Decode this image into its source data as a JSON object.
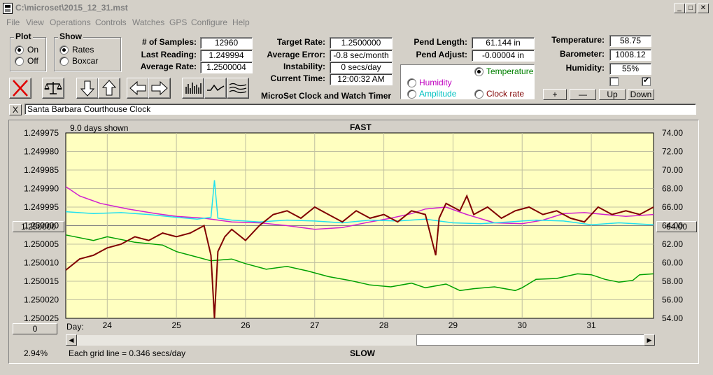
{
  "window": {
    "title": "C:\\microset\\2015_12_31.mst",
    "min_label": "_",
    "max_label": "□",
    "close_label": "✕"
  },
  "menu": [
    "File",
    "View",
    "Operations",
    "Controls",
    "Watches",
    "GPS",
    "Configure",
    "Help"
  ],
  "plot": {
    "title": "Plot",
    "options": [
      "On",
      "Off"
    ],
    "selected": "On"
  },
  "show": {
    "title": "Show",
    "options": [
      "Rates",
      "Boxcar"
    ],
    "selected": "Rates"
  },
  "stats": {
    "samples_label": "# of Samples:",
    "samples": "12960",
    "last_label": "Last Reading:",
    "last": "1.249994",
    "avg_label": "Average Rate:",
    "avg": "1.2500004"
  },
  "targets": {
    "target_label": "Target Rate:",
    "target": "1.2500000",
    "avgerr_label": "Average Error:",
    "avgerr": "-0.8 sec/month",
    "instab_label": "Instability:",
    "instab": "0 secs/day",
    "time_label": "Current Time:",
    "time": "12:00:32 AM"
  },
  "app_caption": "MicroSet Clock and Watch Timer",
  "pendulum": {
    "length_label": "Pend Length:",
    "length": "61.144 in",
    "adjust_label": "Pend Adjust:",
    "adjust": "-0.00004 in"
  },
  "aux": {
    "temperature": "Temperature",
    "humidity": "Humidity",
    "amplitude": "Amplitude",
    "clock_rate": "Clock rate",
    "selected": "Temperature",
    "colors": {
      "temperature": "#008000",
      "humidity": "#c000c0",
      "amplitude": "#00c0c0",
      "clock_rate": "#800000"
    }
  },
  "env": {
    "temp_label": "Temperature:",
    "temp": "58.75",
    "baro_label": "Barometer:",
    "baro": "1008.12",
    "hum_label": "Humidity:",
    "hum": "55%"
  },
  "scale_buttons": [
    "+",
    "—",
    "Up",
    "Down"
  ],
  "checkboxes": [
    false,
    true
  ],
  "clock_name": "Santa Barbara Courthouse Clock",
  "close_x": "X",
  "chart_header": {
    "days_shown": "9.0 days shown",
    "fast": "FAST",
    "slow": "SLOW",
    "day_label": "Day:",
    "grid_note": "Each grid line = 0.346 secs/day",
    "percent": "2.94%",
    "left_value_box": "1.250000",
    "right_value_box": "64.00",
    "left_bottom_box": "0"
  },
  "chart_data": {
    "type": "line",
    "x_label": "Day:",
    "x_range": [
      23.4,
      31.9
    ],
    "x_ticks": [
      24,
      25,
      26,
      27,
      28,
      29,
      30,
      31
    ],
    "y_left_ticks": [
      "1.249975",
      "1.249980",
      "1.249985",
      "1.249990",
      "1.249995",
      "1.250000",
      "1.250005",
      "1.250010",
      "1.250015",
      "1.250020",
      "1.250025"
    ],
    "y_left_range": [
      1.250025,
      1.249975
    ],
    "y_right_ticks": [
      "74.00",
      "72.00",
      "70.00",
      "68.00",
      "66.00",
      "64.00",
      "62.00",
      "60.00",
      "58.00",
      "56.00",
      "54.00"
    ],
    "y_right_range": [
      54,
      74
    ],
    "grid": true,
    "series": [
      {
        "name": "Temperature",
        "axis": "right",
        "color": "#00a000",
        "x": [
          23.4,
          23.8,
          24.0,
          24.4,
          24.8,
          25.0,
          25.3,
          25.5,
          25.8,
          26.0,
          26.3,
          26.6,
          26.9,
          27.2,
          27.5,
          27.8,
          28.1,
          28.4,
          28.6,
          28.9,
          29.1,
          29.3,
          29.6,
          29.9,
          30.0,
          30.2,
          30.5,
          30.8,
          31.0,
          31.2,
          31.4,
          31.6,
          31.7,
          31.9
        ],
        "y": [
          63.0,
          62.4,
          62.8,
          62.2,
          61.9,
          61.2,
          60.6,
          60.2,
          60.4,
          59.9,
          59.3,
          59.6,
          59.1,
          58.5,
          58.1,
          57.6,
          57.4,
          57.8,
          57.3,
          57.7,
          57.0,
          57.2,
          57.4,
          57.0,
          57.3,
          58.2,
          58.3,
          58.8,
          58.7,
          58.2,
          57.9,
          58.1,
          58.7,
          58.8
        ]
      },
      {
        "name": "Humidity",
        "axis": "right",
        "color": "#d020d0",
        "x": [
          23.4,
          23.6,
          23.9,
          24.3,
          24.7,
          25.0,
          25.4,
          25.8,
          26.2,
          26.6,
          27.0,
          27.4,
          27.8,
          28.1,
          28.4,
          28.6,
          28.9,
          29.2,
          29.6,
          30.0,
          30.3,
          30.6,
          30.9,
          31.2,
          31.5,
          31.9
        ],
        "y": [
          68.2,
          67.2,
          66.4,
          65.8,
          65.3,
          65.0,
          64.8,
          64.4,
          64.3,
          64.0,
          63.6,
          63.8,
          64.4,
          64.8,
          65.3,
          65.8,
          66.0,
          65.2,
          64.3,
          64.2,
          64.6,
          65.3,
          65.4,
          65.2,
          65.0,
          65.2
        ]
      },
      {
        "name": "Amplitude",
        "axis": "right",
        "color": "#20e0f0",
        "x": [
          23.4,
          23.8,
          24.2,
          24.6,
          25.0,
          25.3,
          25.5,
          25.55,
          25.6,
          25.8,
          26.2,
          26.6,
          27.0,
          27.4,
          27.8,
          28.2,
          28.6,
          29.0,
          29.4,
          29.8,
          30.2,
          30.6,
          31.0,
          31.4,
          31.9
        ],
        "y": [
          65.5,
          65.3,
          65.4,
          65.2,
          64.9,
          64.7,
          64.9,
          68.9,
          64.8,
          64.6,
          64.4,
          64.6,
          64.5,
          64.3,
          64.6,
          64.5,
          64.7,
          64.3,
          64.2,
          64.4,
          64.6,
          64.5,
          64.1,
          64.3,
          64.1
        ]
      },
      {
        "name": "Clock rate",
        "axis": "left",
        "color": "#800000",
        "x": [
          23.4,
          23.6,
          23.8,
          24.0,
          24.2,
          24.4,
          24.6,
          24.8,
          25.0,
          25.2,
          25.4,
          25.5,
          25.55,
          25.6,
          25.7,
          25.8,
          26.0,
          26.2,
          26.4,
          26.6,
          26.8,
          27.0,
          27.2,
          27.4,
          27.6,
          27.8,
          28.0,
          28.2,
          28.4,
          28.6,
          28.75,
          28.8,
          28.9,
          29.1,
          29.2,
          29.3,
          29.5,
          29.7,
          29.9,
          30.1,
          30.3,
          30.5,
          30.7,
          30.9,
          31.1,
          31.3,
          31.5,
          31.7,
          31.9
        ],
        "y": [
          1.250012,
          1.250009,
          1.250008,
          1.250006,
          1.250005,
          1.250003,
          1.250004,
          1.250002,
          1.250003,
          1.250002,
          1.25,
          1.250008,
          1.250025,
          1.250007,
          1.250003,
          1.250001,
          1.250004,
          1.25,
          1.249997,
          1.249996,
          1.249998,
          1.249995,
          1.249997,
          1.249999,
          1.249996,
          1.249998,
          1.249997,
          1.249999,
          1.249996,
          1.249997,
          1.250008,
          1.249998,
          1.249994,
          1.249996,
          1.249992,
          1.249997,
          1.249995,
          1.249998,
          1.249996,
          1.249995,
          1.249997,
          1.249996,
          1.249998,
          1.249999,
          1.249995,
          1.249997,
          1.249996,
          1.249997,
          1.249995
        ]
      }
    ]
  }
}
